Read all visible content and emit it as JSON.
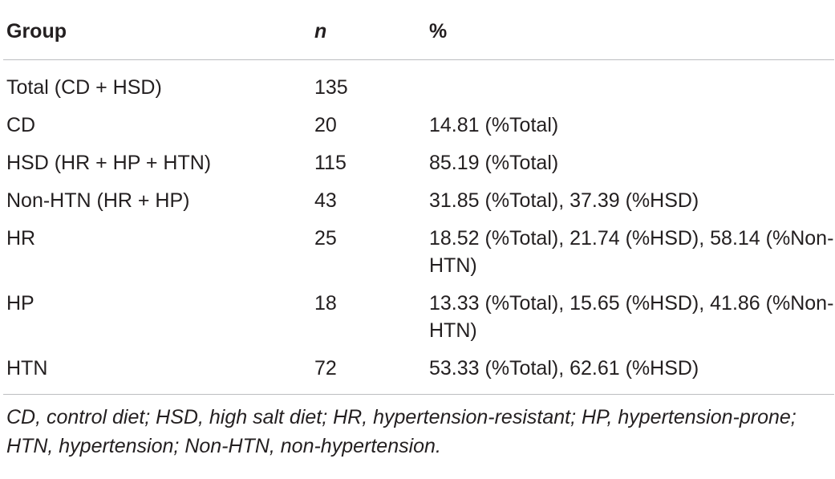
{
  "table": {
    "headers": [
      "Group",
      "n",
      "%"
    ],
    "rows": [
      {
        "group": "Total (CD + HSD)",
        "n": "135",
        "pct": ""
      },
      {
        "group": "CD",
        "n": "20",
        "pct": "14.81 (%Total)"
      },
      {
        "group": "HSD (HR + HP + HTN)",
        "n": "115",
        "pct": "85.19 (%Total)"
      },
      {
        "group": "Non-HTN (HR + HP)",
        "n": "43",
        "pct": "31.85 (%Total), 37.39 (%HSD)"
      },
      {
        "group": "HR",
        "n": "25",
        "pct": "18.52 (%Total), 21.74 (%HSD), 58.14 (%Non-HTN)"
      },
      {
        "group": "HP",
        "n": "18",
        "pct": "13.33 (%Total), 15.65 (%HSD), 41.86 (%Non-HTN)"
      },
      {
        "group": "HTN",
        "n": "72",
        "pct": "53.33 (%Total), 62.61 (%HSD)"
      }
    ]
  },
  "footnote": "CD, control diet; HSD, high salt diet; HR, hypertension-resistant; HP, hypertension-prone; HTN, hypertension; Non-HTN, non-hypertension."
}
